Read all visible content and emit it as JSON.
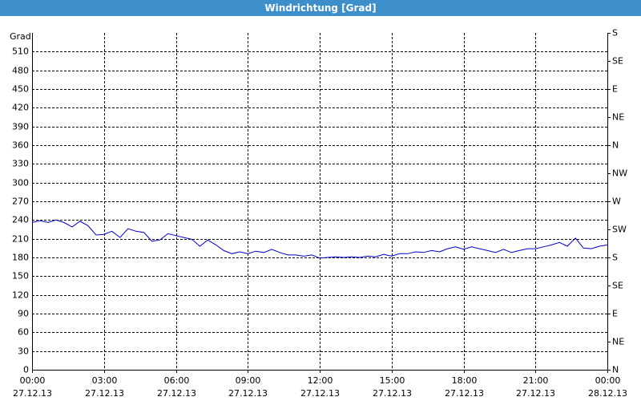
{
  "chart_data": {
    "type": "line",
    "title": "Windrichtung [Grad]",
    "y_label": "Grad",
    "xlim": [
      0,
      24
    ],
    "xticks": [
      {
        "value": 0,
        "label": "00:00",
        "sublabel": "27.12.13"
      },
      {
        "value": 3,
        "label": "03:00",
        "sublabel": "27.12.13"
      },
      {
        "value": 6,
        "label": "06:00",
        "sublabel": "27.12.13"
      },
      {
        "value": 9,
        "label": "09:00",
        "sublabel": "27.12.13"
      },
      {
        "value": 12,
        "label": "12:00",
        "sublabel": "27.12.13"
      },
      {
        "value": 15,
        "label": "15:00",
        "sublabel": "27.12.13"
      },
      {
        "value": 18,
        "label": "18:00",
        "sublabel": "27.12.13"
      },
      {
        "value": 21,
        "label": "21:00",
        "sublabel": "27.12.13"
      },
      {
        "value": 24,
        "label": "00:00",
        "sublabel": "28.12.13"
      }
    ],
    "ylim": [
      0,
      540
    ],
    "yticks": [
      0,
      30,
      60,
      90,
      120,
      150,
      180,
      210,
      240,
      270,
      300,
      330,
      360,
      390,
      420,
      450,
      480,
      510
    ],
    "y2lim": [
      0,
      540
    ],
    "y2ticks": [
      {
        "value": 0,
        "label": "N"
      },
      {
        "value": 45,
        "label": "NE"
      },
      {
        "value": 90,
        "label": "E"
      },
      {
        "value": 135,
        "label": "SE"
      },
      {
        "value": 180,
        "label": "S"
      },
      {
        "value": 225,
        "label": "SW"
      },
      {
        "value": 270,
        "label": "W"
      },
      {
        "value": 315,
        "label": "NW"
      },
      {
        "value": 360,
        "label": "N"
      },
      {
        "value": 405,
        "label": "NE"
      },
      {
        "value": 450,
        "label": "E"
      },
      {
        "value": 495,
        "label": "SE"
      },
      {
        "value": 540,
        "label": "S"
      }
    ],
    "grid": true,
    "x": [
      0,
      0.33,
      0.67,
      1,
      1.33,
      1.67,
      2,
      2.33,
      2.67,
      3,
      3.33,
      3.67,
      4,
      4.33,
      4.67,
      5,
      5.33,
      5.67,
      6,
      6.33,
      6.67,
      7,
      7.33,
      7.67,
      8,
      8.33,
      8.67,
      9,
      9.33,
      9.67,
      10,
      10.33,
      10.67,
      11,
      11.33,
      11.67,
      12,
      12.33,
      12.67,
      13,
      13.33,
      13.67,
      14,
      14.33,
      14.67,
      15,
      15.33,
      15.67,
      16,
      16.33,
      16.67,
      17,
      17.33,
      17.67,
      18,
      18.33,
      18.67,
      19,
      19.33,
      19.67,
      20,
      20.33,
      20.67,
      21,
      21.33,
      21.67,
      22,
      22.33,
      22.67,
      23,
      23.33,
      23.67,
      24
    ],
    "series": [
      {
        "color": "#0000cc",
        "values": [
          236,
          239,
          236,
          240,
          236,
          229,
          238,
          231,
          216,
          217,
          222,
          212,
          226,
          222,
          220,
          206,
          208,
          218,
          215,
          212,
          209,
          198,
          208,
          200,
          191,
          186,
          189,
          186,
          190,
          188,
          193,
          188,
          184,
          184,
          182,
          184,
          179,
          180,
          181,
          180,
          181,
          180,
          182,
          181,
          185,
          182,
          186,
          186,
          189,
          188,
          191,
          189,
          194,
          197,
          193,
          197,
          194,
          191,
          188,
          193,
          188,
          191,
          194,
          194,
          197,
          200,
          204,
          198,
          211,
          195,
          194,
          198,
          200
        ]
      }
    ]
  }
}
